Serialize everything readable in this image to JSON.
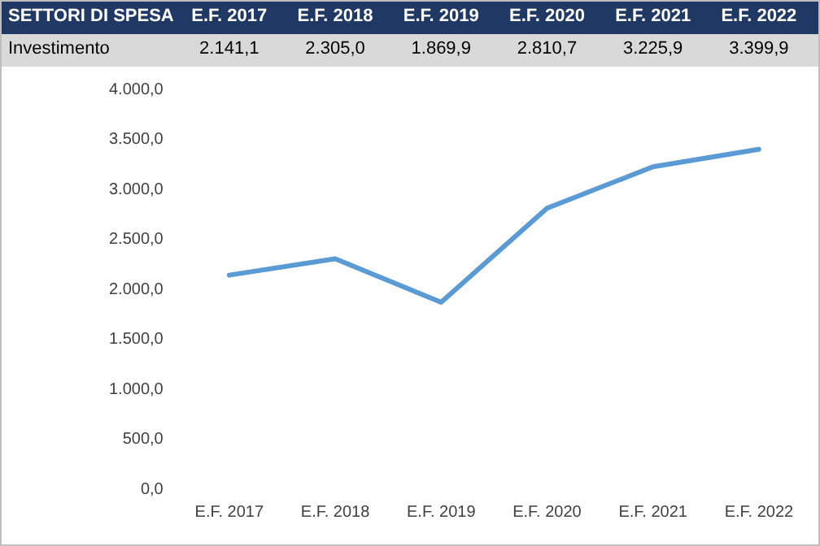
{
  "chart_data": {
    "type": "line",
    "legend_title": "SETTORI DI SPESA",
    "categories": [
      "E.F. 2017",
      "E.F. 2018",
      "E.F. 2019",
      "E.F. 2020",
      "E.F. 2021",
      "E.F. 2022"
    ],
    "series": [
      {
        "name": "Investimento",
        "color": "#5b9bd5",
        "values": [
          2141.1,
          2305.0,
          1869.9,
          2810.7,
          3225.9,
          3399.9
        ],
        "value_labels": [
          "2.141,1",
          "2.305,0",
          "1.869,9",
          "2.810,7",
          "3.225,9",
          "3.399,9"
        ]
      }
    ],
    "ylim": [
      0,
      4000
    ],
    "yticks": [
      {
        "value": 0,
        "label": "0,0"
      },
      {
        "value": 500,
        "label": "500,0"
      },
      {
        "value": 1000,
        "label": "1.000,0"
      },
      {
        "value": 1500,
        "label": "1.500,0"
      },
      {
        "value": 2000,
        "label": "2.000,0"
      },
      {
        "value": 2500,
        "label": "2.500,0"
      },
      {
        "value": 3000,
        "label": "3.000,0"
      },
      {
        "value": 3500,
        "label": "3.500,0"
      },
      {
        "value": 4000,
        "label": "4.000,0"
      }
    ],
    "grid": false,
    "legend": false,
    "marker": "none",
    "line_style": "solid"
  }
}
